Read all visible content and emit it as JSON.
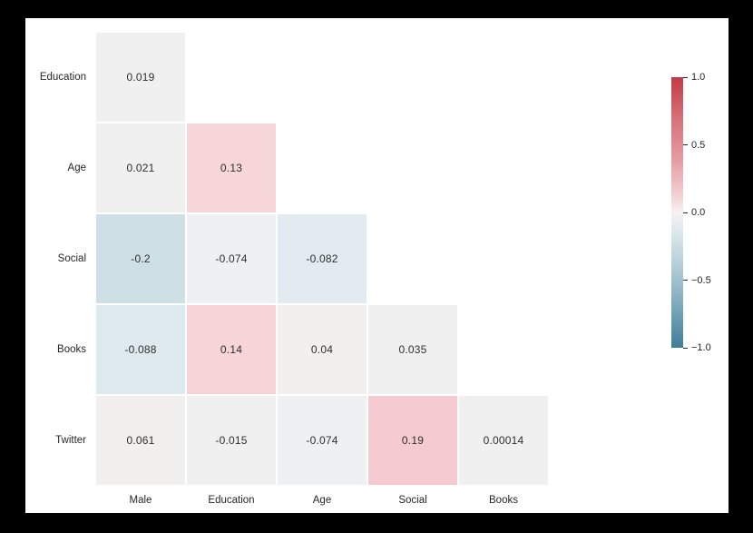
{
  "figure": {
    "background": "#000000",
    "panel_background": "#ffffff",
    "text_color": "#262626",
    "cell_text_color": "#2e2e2e",
    "cell_border_color": "#ffffff"
  },
  "chart_data": {
    "type": "heatmap",
    "title": "",
    "xlabel": "",
    "ylabel": "",
    "grid": false,
    "legend": false,
    "mask": "upper-triangle-hidden",
    "x_categories": [
      "Male",
      "Education",
      "Age",
      "Social",
      "Books"
    ],
    "y_categories": [
      "Education",
      "Age",
      "Social",
      "Books",
      "Twitter"
    ],
    "rows": [
      {
        "label": "Education",
        "values": [
          0.019
        ],
        "labels": [
          "0.019"
        ],
        "colors": [
          "#f1f0f0"
        ]
      },
      {
        "label": "Age",
        "values": [
          0.021,
          0.13
        ],
        "labels": [
          "0.021",
          "0.13"
        ],
        "colors": [
          "#f1f0f0",
          "#f7d6d9"
        ]
      },
      {
        "label": "Social",
        "values": [
          -0.2,
          -0.074,
          -0.082
        ],
        "labels": [
          "-0.2",
          "-0.074",
          "-0.082"
        ],
        "colors": [
          "#cedfe6",
          "#eef0f1",
          "#e2ecf0"
        ]
      },
      {
        "label": "Books",
        "values": [
          -0.088,
          0.14,
          0.04,
          0.035
        ],
        "labels": [
          "-0.088",
          "0.14",
          "0.04",
          "0.035"
        ],
        "colors": [
          "#dfeaee",
          "#f7d4d8",
          "#f2efef",
          "#f1f0f0"
        ]
      },
      {
        "label": "Twitter",
        "values": [
          0.061,
          -0.015,
          -0.074,
          0.19,
          0.00014
        ],
        "labels": [
          "0.061",
          "-0.015",
          "-0.074",
          "0.19",
          "0.00014"
        ],
        "colors": [
          "#f2efef",
          "#f0f0f0",
          "#eef0f1",
          "#f5cad0",
          "#f1f0f0"
        ]
      }
    ],
    "colorbar": {
      "vmin": -1.0,
      "vmax": 1.0,
      "ticks": [
        "1.0",
        "0.5",
        "0.0",
        "−0.5",
        "−1.0"
      ],
      "gradient_stops": [
        {
          "color": "#c43a43",
          "pos": "0%"
        },
        {
          "color": "#d67079",
          "pos": "15%"
        },
        {
          "color": "#e49aa0",
          "pos": "30%"
        },
        {
          "color": "#f2cdd0",
          "pos": "43%"
        },
        {
          "color": "#f6f1f1",
          "pos": "50%"
        },
        {
          "color": "#dde9ec",
          "pos": "57%"
        },
        {
          "color": "#b3cdd8",
          "pos": "70%"
        },
        {
          "color": "#7ba7bb",
          "pos": "85%"
        },
        {
          "color": "#3e7e98",
          "pos": "100%"
        }
      ]
    }
  }
}
